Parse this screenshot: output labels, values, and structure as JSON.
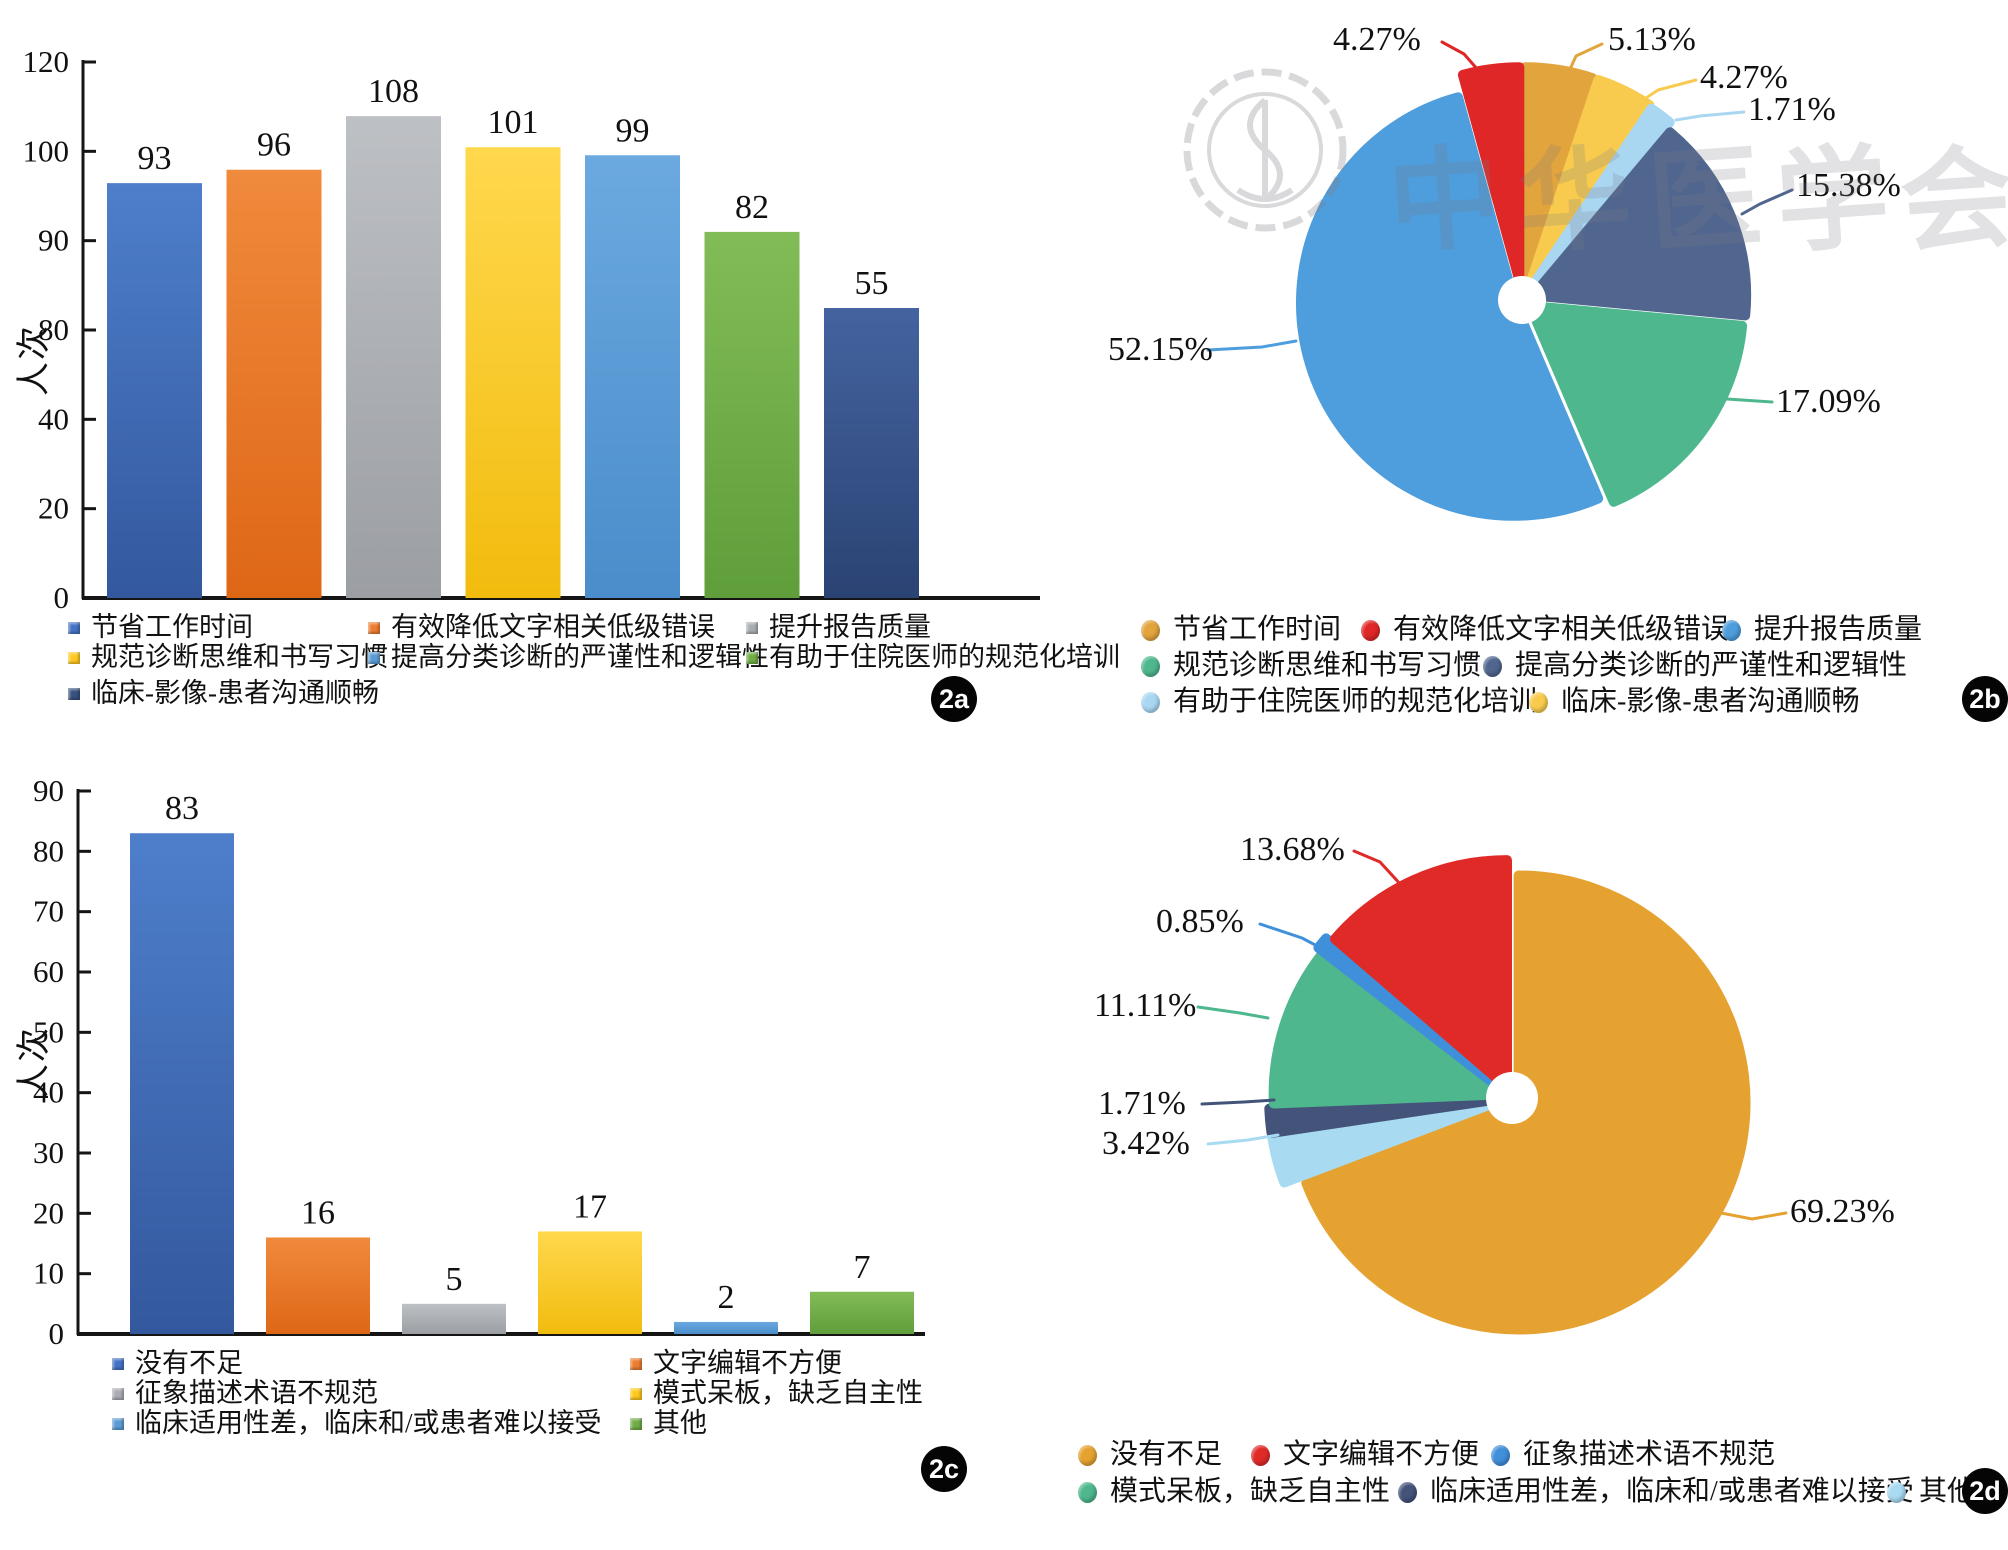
{
  "watermark": {
    "text": "中华医学会",
    "emblem": "cma-emblem-icon"
  },
  "chart_data": [
    {
      "id": "2a",
      "type": "bar",
      "badge": "2a",
      "ylabel": "人次",
      "ylim": [
        0,
        120
      ],
      "ytick_labels": [
        "0",
        "20",
        "40",
        "80",
        "90",
        "100",
        "120"
      ],
      "grid": false,
      "legend_position": "bottom",
      "categories": [
        "节省工作时间",
        "有效降低文字相关低级错误",
        "提升报告质量",
        "规范诊断思维和书写习惯",
        "提高分类诊断的严谨性和逻辑性",
        "有助于住院医师的规范化培训",
        "临床-影像-患者沟通顺畅"
      ],
      "values": [
        93,
        96,
        108,
        101,
        99,
        82,
        55
      ],
      "bar_colors_top": [
        "#4E7FCB",
        "#F08A3C",
        "#BDC0C4",
        "#FFD84D",
        "#6BA9E0",
        "#82BC57",
        "#44639F"
      ],
      "bar_colors_bottom": [
        "#33589E",
        "#DE6716",
        "#9B9EA3",
        "#F2BC0E",
        "#4A8DCA",
        "#5F9E3A",
        "#2A4373"
      ],
      "legend_marker_colors": [
        "#4472C4",
        "#ED7D31",
        "#A9ACB1",
        "#FFC91F",
        "#5B9BD5",
        "#70AD47",
        "#37527F"
      ]
    },
    {
      "id": "2b",
      "type": "pie",
      "badge": "2b",
      "slices": [
        {
          "label": "节省工作时间",
          "value": 5.13,
          "pct_label": "5.13%",
          "color": "#E2A43C"
        },
        {
          "label": "临床-影像-患者沟通顺畅",
          "value": 4.27,
          "pct_label": "4.27%",
          "color": "#F8CB4E"
        },
        {
          "label": "有助于住院医师的规范化培训",
          "value": 1.71,
          "pct_label": "1.71%",
          "color": "#A9D7F2"
        },
        {
          "label": "提高分类诊断的严谨性和逻辑性",
          "value": 15.38,
          "pct_label": "15.38%",
          "color": "#50668F"
        },
        {
          "label": "规范诊断思维和书写习惯",
          "value": 17.09,
          "pct_label": "17.09%",
          "color": "#4EB78D"
        },
        {
          "label": "提升报告质量",
          "value": 52.15,
          "pct_label": "52.15%",
          "color": "#4E9DDC"
        },
        {
          "label": "有效降低文字相关低级错误",
          "value": 4.27,
          "pct_label": "4.27%",
          "color": "#DE2726"
        }
      ],
      "legend": [
        {
          "label": "节省工作时间",
          "color": "#E2A43C"
        },
        {
          "label": "有效降低文字相关低级错误",
          "color": "#DE2726"
        },
        {
          "label": "提升报告质量",
          "color": "#4E9DDC"
        },
        {
          "label": "规范诊断思维和书写习惯",
          "color": "#4EB78D"
        },
        {
          "label": "提高分类诊断的严谨性和逻辑性",
          "color": "#50668F"
        },
        {
          "label": "有助于住院医师的规范化培训",
          "color": "#A9D7F2"
        },
        {
          "label": "临床-影像-患者沟通顺畅",
          "color": "#F8CB4E"
        }
      ]
    },
    {
      "id": "2c",
      "type": "bar",
      "badge": "2c",
      "ylabel": "人次",
      "ylim": [
        0,
        90
      ],
      "ytick_labels": [
        "0",
        "10",
        "20",
        "30",
        "40",
        "50",
        "60",
        "70",
        "80",
        "90"
      ],
      "grid": false,
      "legend_position": "bottom",
      "categories": [
        "没有不足",
        "文字编辑不方便",
        "征象描述术语不规范",
        "模式呆板，缺乏自主性",
        "临床适用性差，临床和/或患者难以接受",
        "其他"
      ],
      "values": [
        83,
        16,
        5,
        17,
        2,
        7
      ],
      "bar_colors_top": [
        "#4E7FCB",
        "#F08A3C",
        "#BDC0C4",
        "#FFD84D",
        "#6BA9E0",
        "#82BC57"
      ],
      "bar_colors_bottom": [
        "#33589E",
        "#DE6716",
        "#9B9EA3",
        "#F2BC0E",
        "#4A8DCA",
        "#5F9E3A"
      ],
      "legend_marker_colors": [
        "#4472C4",
        "#ED7D31",
        "#A9ACB1",
        "#FFC91F",
        "#5B9BD5",
        "#70AD47"
      ]
    },
    {
      "id": "2d",
      "type": "pie",
      "badge": "2d",
      "slices": [
        {
          "label": "没有不足",
          "value": 69.23,
          "pct_label": "69.23%",
          "color": "#E5A230"
        },
        {
          "label": "其他",
          "value": 3.42,
          "pct_label": "3.42%",
          "color": "#A8DAF2"
        },
        {
          "label": "临床适用性差，临床和/或患者难以接受",
          "value": 1.71,
          "pct_label": "1.71%",
          "color": "#44537A"
        },
        {
          "label": "模式呆板，缺乏自主性",
          "value": 11.11,
          "pct_label": "11.11%",
          "color": "#4EB78D"
        },
        {
          "label": "征象描述术语不规范",
          "value": 0.85,
          "pct_label": "0.85%",
          "color": "#3F8FDB"
        },
        {
          "label": "文字编辑不方便",
          "value": 13.68,
          "pct_label": "13.68%",
          "color": "#E02A28"
        }
      ],
      "legend": [
        {
          "label": "没有不足",
          "color": "#E5A230"
        },
        {
          "label": "文字编辑不方便",
          "color": "#E02A28"
        },
        {
          "label": "征象描述术语不规范",
          "color": "#3F8FDB"
        },
        {
          "label": "模式呆板，缺乏自主性",
          "color": "#4EB78D"
        },
        {
          "label": "临床适用性差，临床和/或患者难以接受",
          "color": "#44537A"
        },
        {
          "label": "其他",
          "color": "#A8DAF2"
        }
      ]
    }
  ]
}
